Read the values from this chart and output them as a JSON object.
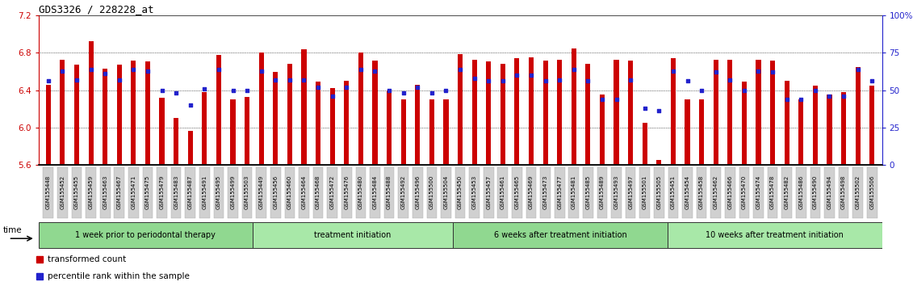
{
  "title": "GDS3326 / 228228_at",
  "ylim": [
    5.6,
    7.2
  ],
  "yticks_left": [
    5.6,
    6.0,
    6.4,
    6.8,
    7.2
  ],
  "yticks_right_pct": [
    0,
    25,
    50,
    75,
    100
  ],
  "yticks_right_labels": [
    "0",
    "25",
    "50",
    "75",
    "100%"
  ],
  "bar_color": "#cc0000",
  "dot_color": "#2222cc",
  "categories": [
    "GSM155448",
    "GSM155452",
    "GSM155455",
    "GSM155459",
    "GSM155463",
    "GSM155467",
    "GSM155471",
    "GSM155475",
    "GSM155479",
    "GSM155483",
    "GSM155487",
    "GSM155491",
    "GSM155495",
    "GSM155499",
    "GSM155503",
    "GSM155449",
    "GSM155456",
    "GSM155460",
    "GSM155464",
    "GSM155468",
    "GSM155472",
    "GSM155476",
    "GSM155480",
    "GSM155484",
    "GSM155488",
    "GSM155492",
    "GSM155496",
    "GSM155500",
    "GSM155504",
    "GSM155450",
    "GSM155453",
    "GSM155457",
    "GSM155461",
    "GSM155465",
    "GSM155469",
    "GSM155473",
    "GSM155477",
    "GSM155481",
    "GSM155485",
    "GSM155489",
    "GSM155493",
    "GSM155497",
    "GSM155501",
    "GSM155505",
    "GSM155451",
    "GSM155454",
    "GSM155458",
    "GSM155462",
    "GSM155466",
    "GSM155470",
    "GSM155474",
    "GSM155478",
    "GSM155482",
    "GSM155486",
    "GSM155490",
    "GSM155494",
    "GSM155498",
    "GSM155502",
    "GSM155506"
  ],
  "bar_values": [
    6.46,
    6.73,
    6.67,
    6.93,
    6.63,
    6.67,
    6.72,
    6.71,
    6.32,
    6.1,
    5.96,
    6.38,
    6.78,
    6.3,
    6.33,
    6.8,
    6.6,
    6.68,
    6.84,
    6.49,
    6.42,
    6.5,
    6.8,
    6.72,
    6.4,
    6.3,
    6.46,
    6.3,
    6.3,
    6.79,
    6.73,
    6.71,
    6.68,
    6.74,
    6.75,
    6.72,
    6.73,
    6.85,
    6.68,
    6.35,
    6.73,
    6.72,
    6.05,
    5.65,
    6.74,
    6.3,
    6.3,
    6.73,
    6.73,
    6.49,
    6.73,
    6.72,
    6.5,
    6.3,
    6.45,
    6.35,
    6.38,
    6.65,
    6.45
  ],
  "dot_pct": [
    56,
    63,
    57,
    64,
    61,
    57,
    64,
    63,
    50,
    48,
    40,
    51,
    64,
    50,
    50,
    63,
    57,
    57,
    57,
    52,
    46,
    52,
    64,
    63,
    50,
    48,
    52,
    48,
    50,
    64,
    58,
    56,
    56,
    60,
    60,
    56,
    57,
    64,
    56,
    44,
    44,
    57,
    38,
    36,
    63,
    56,
    50,
    62,
    57,
    50,
    63,
    62,
    44,
    44,
    50,
    46,
    46,
    64,
    56
  ],
  "group_starts": [
    0,
    15,
    29,
    44
  ],
  "group_ends": [
    15,
    29,
    44,
    59
  ],
  "group_labels": [
    "1 week prior to periodontal therapy",
    "treatment initiation",
    "6 weeks after treatment initiation",
    "10 weeks after treatment initiation"
  ],
  "group_fill_even": "#90d890",
  "group_fill_odd": "#a8e8a8",
  "legend_labels": [
    "transformed count",
    "percentile rank within the sample"
  ],
  "legend_colors": [
    "#cc0000",
    "#2222cc"
  ]
}
